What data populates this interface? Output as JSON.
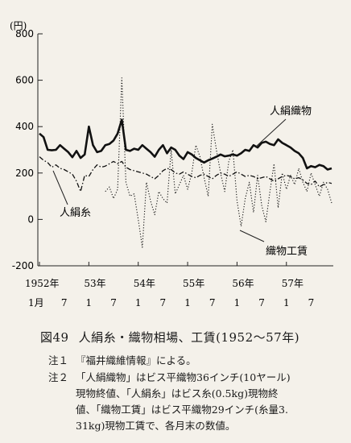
{
  "chart_data": {
    "type": "line",
    "y_unit": "(円)",
    "yticks": [
      800,
      600,
      400,
      200,
      0,
      -200
    ],
    "ylim": [
      -200,
      800
    ],
    "x_start_month": "1952-01",
    "x_end_month": "1957-12",
    "xtick_years": [
      {
        "label": "1952年",
        "month": "1952-01"
      },
      {
        "label": "53年",
        "month": "1953-01"
      },
      {
        "label": "54年",
        "month": "1954-01"
      },
      {
        "label": "55年",
        "month": "1955-01"
      },
      {
        "label": "56年",
        "month": "1956-01"
      },
      {
        "label": "57年",
        "month": "1957-01"
      }
    ],
    "xtick_months": [
      {
        "label": "1月",
        "month": "1952-01"
      },
      {
        "label": "7",
        "month": "1952-07"
      },
      {
        "label": "1",
        "month": "1953-01"
      },
      {
        "label": "7",
        "month": "1953-07"
      },
      {
        "label": "1",
        "month": "1954-01"
      },
      {
        "label": "7",
        "month": "1954-07"
      },
      {
        "label": "1",
        "month": "1955-01"
      },
      {
        "label": "7",
        "month": "1955-07"
      },
      {
        "label": "1",
        "month": "1956-01"
      },
      {
        "label": "7",
        "month": "1956-07"
      },
      {
        "label": "1",
        "month": "1957-01"
      },
      {
        "label": "7",
        "month": "1957-07"
      }
    ],
    "series": [
      {
        "name": "人絹織物",
        "style": "solid",
        "color": "#111111",
        "points": [
          [
            "1952-01",
            370
          ],
          [
            "1952-02",
            355
          ],
          [
            "1952-03",
            300
          ],
          [
            "1952-04",
            298
          ],
          [
            "1952-05",
            300
          ],
          [
            "1952-06",
            320
          ],
          [
            "1952-07",
            305
          ],
          [
            "1952-08",
            290
          ],
          [
            "1952-09",
            268
          ],
          [
            "1952-10",
            295
          ],
          [
            "1952-11",
            265
          ],
          [
            "1952-12",
            280
          ],
          [
            "1953-01",
            400
          ],
          [
            "1953-02",
            320
          ],
          [
            "1953-03",
            290
          ],
          [
            "1953-04",
            295
          ],
          [
            "1953-05",
            320
          ],
          [
            "1953-06",
            325
          ],
          [
            "1953-07",
            340
          ],
          [
            "1953-08",
            370
          ],
          [
            "1953-09",
            430
          ],
          [
            "1953-10",
            300
          ],
          [
            "1953-11",
            295
          ],
          [
            "1953-12",
            305
          ],
          [
            "1954-01",
            300
          ],
          [
            "1954-02",
            320
          ],
          [
            "1954-03",
            305
          ],
          [
            "1954-04",
            290
          ],
          [
            "1954-05",
            270
          ],
          [
            "1954-06",
            300
          ],
          [
            "1954-07",
            320
          ],
          [
            "1954-08",
            285
          ],
          [
            "1954-09",
            310
          ],
          [
            "1954-10",
            300
          ],
          [
            "1954-11",
            275
          ],
          [
            "1954-12",
            260
          ],
          [
            "1955-01",
            290
          ],
          [
            "1955-02",
            280
          ],
          [
            "1955-03",
            265
          ],
          [
            "1955-04",
            255
          ],
          [
            "1955-05",
            245
          ],
          [
            "1955-06",
            255
          ],
          [
            "1955-07",
            262
          ],
          [
            "1955-08",
            270
          ],
          [
            "1955-09",
            280
          ],
          [
            "1955-10",
            272
          ],
          [
            "1955-11",
            275
          ],
          [
            "1955-12",
            280
          ],
          [
            "1956-01",
            275
          ],
          [
            "1956-02",
            285
          ],
          [
            "1956-03",
            300
          ],
          [
            "1956-04",
            295
          ],
          [
            "1956-05",
            320
          ],
          [
            "1956-06",
            310
          ],
          [
            "1956-07",
            330
          ],
          [
            "1956-08",
            335
          ],
          [
            "1956-09",
            325
          ],
          [
            "1956-10",
            320
          ],
          [
            "1956-11",
            345
          ],
          [
            "1956-12",
            330
          ],
          [
            "1957-01",
            320
          ],
          [
            "1957-02",
            310
          ],
          [
            "1957-03",
            295
          ],
          [
            "1957-04",
            285
          ],
          [
            "1957-05",
            265
          ],
          [
            "1957-06",
            220
          ],
          [
            "1957-07",
            230
          ],
          [
            "1957-08",
            225
          ],
          [
            "1957-09",
            235
          ],
          [
            "1957-10",
            230
          ],
          [
            "1957-11",
            215
          ],
          [
            "1957-12",
            220
          ]
        ]
      },
      {
        "name": "人絹糸",
        "style": "dash-dot",
        "color": "#111111",
        "points": [
          [
            "1952-01",
            270
          ],
          [
            "1952-02",
            255
          ],
          [
            "1952-03",
            245
          ],
          [
            "1952-04",
            225
          ],
          [
            "1952-05",
            235
          ],
          [
            "1952-06",
            220
          ],
          [
            "1952-07",
            215
          ],
          [
            "1952-08",
            205
          ],
          [
            "1952-09",
            195
          ],
          [
            "1952-10",
            165
          ],
          [
            "1952-11",
            120
          ],
          [
            "1952-12",
            190
          ],
          [
            "1953-01",
            185
          ],
          [
            "1953-02",
            215
          ],
          [
            "1953-03",
            235
          ],
          [
            "1953-04",
            225
          ],
          [
            "1953-05",
            230
          ],
          [
            "1953-06",
            240
          ],
          [
            "1953-07",
            250
          ],
          [
            "1953-08",
            240
          ],
          [
            "1953-09",
            250
          ],
          [
            "1953-10",
            225
          ],
          [
            "1953-11",
            215
          ],
          [
            "1953-12",
            210
          ],
          [
            "1954-01",
            205
          ],
          [
            "1954-02",
            200
          ],
          [
            "1954-03",
            195
          ],
          [
            "1954-04",
            185
          ],
          [
            "1954-05",
            175
          ],
          [
            "1954-06",
            190
          ],
          [
            "1954-07",
            210
          ],
          [
            "1954-08",
            220
          ],
          [
            "1954-09",
            215
          ],
          [
            "1954-10",
            200
          ],
          [
            "1954-11",
            195
          ],
          [
            "1954-12",
            205
          ],
          [
            "1955-01",
            195
          ],
          [
            "1955-02",
            185
          ],
          [
            "1955-03",
            180
          ],
          [
            "1955-04",
            190
          ],
          [
            "1955-05",
            195
          ],
          [
            "1955-06",
            185
          ],
          [
            "1955-07",
            175
          ],
          [
            "1955-08",
            190
          ],
          [
            "1955-09",
            200
          ],
          [
            "1955-10",
            195
          ],
          [
            "1955-11",
            185
          ],
          [
            "1955-12",
            195
          ],
          [
            "1956-01",
            205
          ],
          [
            "1956-02",
            195
          ],
          [
            "1956-03",
            185
          ],
          [
            "1956-04",
            190
          ],
          [
            "1956-05",
            185
          ],
          [
            "1956-06",
            175
          ],
          [
            "1956-07",
            180
          ],
          [
            "1956-08",
            185
          ],
          [
            "1956-09",
            175
          ],
          [
            "1956-10",
            165
          ],
          [
            "1956-11",
            175
          ],
          [
            "1956-12",
            185
          ],
          [
            "1957-01",
            190
          ],
          [
            "1957-02",
            185
          ],
          [
            "1957-03",
            175
          ],
          [
            "1957-04",
            180
          ],
          [
            "1957-05",
            170
          ],
          [
            "1957-06",
            155
          ],
          [
            "1957-07",
            150
          ],
          [
            "1957-08",
            165
          ],
          [
            "1957-09",
            140
          ],
          [
            "1957-10",
            150
          ],
          [
            "1957-11",
            160
          ],
          [
            "1957-12",
            155
          ]
        ]
      },
      {
        "name": "織物工賃",
        "style": "dotted",
        "color": "#111111",
        "points": [
          [
            "1953-05",
            120
          ],
          [
            "1953-06",
            140
          ],
          [
            "1953-07",
            90
          ],
          [
            "1953-08",
            130
          ],
          [
            "1953-09",
            610
          ],
          [
            "1953-10",
            160
          ],
          [
            "1953-11",
            100
          ],
          [
            "1953-12",
            110
          ],
          [
            "1954-01",
            0
          ],
          [
            "1954-02",
            -120
          ],
          [
            "1954-03",
            160
          ],
          [
            "1954-04",
            80
          ],
          [
            "1954-05",
            20
          ],
          [
            "1954-06",
            120
          ],
          [
            "1954-07",
            90
          ],
          [
            "1954-08",
            70
          ],
          [
            "1954-09",
            300
          ],
          [
            "1954-10",
            110
          ],
          [
            "1954-11",
            150
          ],
          [
            "1954-12",
            190
          ],
          [
            "1955-01",
            130
          ],
          [
            "1955-02",
            200
          ],
          [
            "1955-03",
            320
          ],
          [
            "1955-04",
            270
          ],
          [
            "1955-05",
            180
          ],
          [
            "1955-06",
            100
          ],
          [
            "1955-07",
            410
          ],
          [
            "1955-08",
            300
          ],
          [
            "1955-09",
            200
          ],
          [
            "1955-10",
            120
          ],
          [
            "1955-11",
            250
          ],
          [
            "1955-12",
            300
          ],
          [
            "1956-01",
            80
          ],
          [
            "1956-02",
            -30
          ],
          [
            "1956-03",
            90
          ],
          [
            "1956-04",
            160
          ],
          [
            "1956-05",
            30
          ],
          [
            "1956-06",
            190
          ],
          [
            "1956-07",
            60
          ],
          [
            "1956-08",
            -10
          ],
          [
            "1956-09",
            120
          ],
          [
            "1956-10",
            240
          ],
          [
            "1956-11",
            50
          ],
          [
            "1956-12",
            200
          ],
          [
            "1957-01",
            130
          ],
          [
            "1957-02",
            190
          ],
          [
            "1957-03",
            150
          ],
          [
            "1957-04",
            220
          ],
          [
            "1957-05",
            160
          ],
          [
            "1957-06",
            120
          ],
          [
            "1957-07",
            200
          ],
          [
            "1957-08",
            150
          ],
          [
            "1957-09",
            100
          ],
          [
            "1957-10",
            160
          ],
          [
            "1957-11",
            130
          ],
          [
            "1957-12",
            70
          ]
        ]
      }
    ],
    "annotations": [
      {
        "series": "人絹織物",
        "text": "人絹織物"
      },
      {
        "series": "人絹糸",
        "text": "人絹糸"
      },
      {
        "series": "織物工賃",
        "text": "織物工賃"
      }
    ]
  },
  "caption": {
    "figure_number": "図49",
    "title": "人絹糸・織物相場、工賃(1952〜57年)"
  },
  "notes": [
    {
      "label": "注１",
      "lines": [
        "『福井織維情報』による。"
      ]
    },
    {
      "label": "注２",
      "lines": [
        "「人絹織物」はビス平織物36インチ(10ヤール)",
        "現物終値、「人絹糸」はビス糸(0.5kg)現物終",
        "値、「織物工賃」はビス平織物29インチ(糸量3.",
        "31kg)現物工賃で、各月末の数値。"
      ]
    }
  ]
}
